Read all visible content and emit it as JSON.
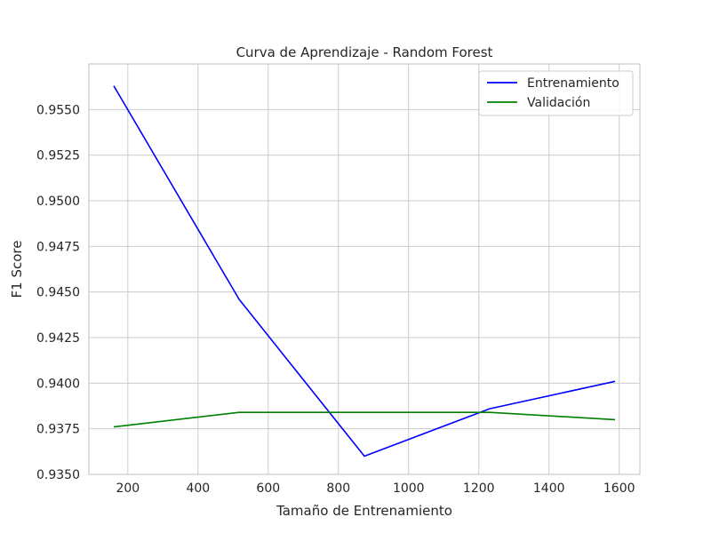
{
  "chart_data": {
    "type": "line",
    "title": "Curva de Aprendizaje - Random Forest",
    "xlabel": "Tamaño de Entrenamiento",
    "ylabel": "F1 Score",
    "xlim": [
      89,
      1659
    ],
    "ylim": [
      0.935,
      0.9575
    ],
    "xticks": [
      200,
      400,
      600,
      800,
      1000,
      1200,
      1400,
      1600
    ],
    "yticks": [
      0.935,
      0.9375,
      0.94,
      0.9425,
      0.945,
      0.9475,
      0.95,
      0.9525,
      0.955
    ],
    "ytick_labels": [
      "0.9350",
      "0.9375",
      "0.9400",
      "0.9425",
      "0.9450",
      "0.9475",
      "0.9500",
      "0.9525",
      "0.9550"
    ],
    "xtick_labels": [
      "200",
      "400",
      "600",
      "800",
      "1000",
      "1200",
      "1400",
      "1600"
    ],
    "grid": true,
    "legend_position": "top-right",
    "x": [
      160,
      517,
      874,
      1231,
      1588
    ],
    "series": [
      {
        "name": "Entrenamiento",
        "color": "#0000ff",
        "values": [
          0.9563,
          0.9446,
          0.936,
          0.9386,
          0.9401
        ]
      },
      {
        "name": "Validación",
        "color": "#008000",
        "values": [
          0.9376,
          0.9384,
          0.9384,
          0.9384,
          0.938
        ]
      }
    ]
  }
}
